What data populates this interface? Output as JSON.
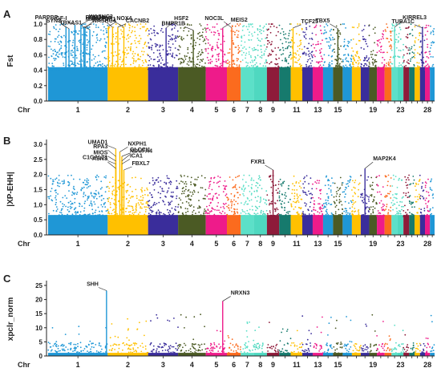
{
  "chart_data": [
    {
      "type": "scatter",
      "panel": "A",
      "ylabel": "Fst",
      "xlabel": "Chr",
      "ylim": [
        0,
        1.0
      ],
      "yticks": [
        "0.0",
        "0.2",
        "0.4",
        "0.6",
        "0.8",
        "1.0"
      ],
      "background_band": [
        0.0,
        0.8
      ],
      "max_gap": 0.03,
      "annotations": [
        {
          "label": "IGF-I",
          "chr": 1,
          "pos": 0.45,
          "value": 0.99
        },
        {
          "label": "WASHC3",
          "chr": 1,
          "pos": 0.55,
          "value": 0.99
        },
        {
          "label": "PARPBP",
          "chr": 1,
          "pos": 0.3,
          "value": 0.96
        },
        {
          "label": "WASHC4",
          "chr": 1,
          "pos": 0.6,
          "value": 0.96
        },
        {
          "label": "SYN3",
          "chr": 1,
          "pos": 0.35,
          "value": 0.94
        },
        {
          "label": "NUP37",
          "chr": 1,
          "pos": 0.62,
          "value": 0.95
        },
        {
          "label": "TBXAS1",
          "chr": 1,
          "pos": 0.7,
          "value": 0.93
        },
        {
          "label": "NOX4",
          "chr": 2,
          "pos": 0.02,
          "value": 0.97
        },
        {
          "label": "RBM33",
          "chr": 2,
          "pos": 0.12,
          "value": 0.96
        },
        {
          "label": "CACNB2",
          "chr": 2,
          "pos": 0.25,
          "value": 0.96
        },
        {
          "label": "MARCHF11",
          "chr": 2,
          "pos": 0.4,
          "value": 0.96
        },
        {
          "label": "HSF2",
          "chr": 3,
          "pos": 0.6,
          "value": 0.95
        },
        {
          "label": "BMPR1B",
          "chr": 4,
          "pos": 0.55,
          "value": 0.92
        },
        {
          "label": "MEIS2",
          "chr": 5,
          "pos": 0.8,
          "value": 0.95
        },
        {
          "label": "NOC3L",
          "chr": 6,
          "pos": 0.35,
          "value": 0.95
        },
        {
          "label": "TCF25",
          "chr": 11,
          "pos": 0.2,
          "value": 0.95
        },
        {
          "label": "TBX5",
          "chr": 15,
          "pos": 0.5,
          "value": 0.94
        },
        {
          "label": "KIRREL3",
          "chr": 22,
          "pos": 0.5,
          "value": 0.96
        },
        {
          "label": "TUBA1C",
          "chr": 27,
          "pos": 0.5,
          "value": 0.95
        }
      ]
    },
    {
      "type": "scatter",
      "panel": "B",
      "ylabel": "|XP-EHH|",
      "xlabel": "Chr",
      "ylim": [
        0,
        3.0
      ],
      "yticks": [
        "0.0",
        "0.5",
        "1.0",
        "1.5",
        "2.0",
        "2.5",
        "3.0"
      ],
      "background_band": [
        0.0,
        1.2
      ],
      "max_gap": 0.12,
      "annotations": [
        {
          "label": "UMAD1",
          "chr": 2,
          "pos": 0.2,
          "value": 2.85
        },
        {
          "label": "NXPH1",
          "chr": 2,
          "pos": 0.3,
          "value": 2.75
        },
        {
          "label": "RPA3",
          "chr": 2,
          "pos": 0.2,
          "value": 2.6
        },
        {
          "label": "GLCCI1",
          "chr": 2,
          "pos": 0.35,
          "value": 2.6
        },
        {
          "label": "MIOS",
          "chr": 2,
          "pos": 0.2,
          "value": 2.45
        },
        {
          "label": "NDUFA4",
          "chr": 2,
          "pos": 0.35,
          "value": 2.45
        },
        {
          "label": "C1GALT1",
          "chr": 2,
          "pos": 0.2,
          "value": 2.35
        },
        {
          "label": "ICA1",
          "chr": 2,
          "pos": 0.35,
          "value": 2.35
        },
        {
          "label": "ASNS",
          "chr": 2,
          "pos": 0.2,
          "value": 2.2
        },
        {
          "label": "FBXL7",
          "chr": 2,
          "pos": 0.4,
          "value": 2.15
        },
        {
          "label": "FXR1",
          "chr": 9,
          "pos": 0.5,
          "value": 2.15
        },
        {
          "label": "MAP2K4",
          "chr": 18,
          "pos": 0.5,
          "value": 2.2
        }
      ]
    },
    {
      "type": "scatter",
      "panel": "C",
      "ylabel": "xpclr_norm",
      "xlabel": "Chr",
      "ylim": [
        0,
        27
      ],
      "yticks": [
        "0",
        "5",
        "10",
        "15",
        "20",
        "25"
      ],
      "background_band": [
        0,
        2
      ],
      "max_gap": 8,
      "annotations": [
        {
          "label": "SHH",
          "chr": 1,
          "pos": 0.98,
          "value": 25
        },
        {
          "label": "NRXN3",
          "chr": 5,
          "pos": 0.8,
          "value": 21
        }
      ]
    }
  ],
  "chromosomes": {
    "labels_shown": [
      "1",
      "2",
      "3",
      "4",
      "5",
      "6",
      "7",
      "8",
      "9",
      "11",
      "13",
      "15",
      "19",
      "23",
      "28"
    ],
    "colors": [
      "#1f97d6",
      "#ffc000",
      "#3a2d9b",
      "#4b5a24",
      "#ee1b8a",
      "#fb6b1e",
      "#f4f4f4",
      "#4fd8c0",
      "#8e1b3a",
      "#167a6d",
      "#ffc000",
      "#3a2d9b",
      "#ee1b8a",
      "#1f97d6",
      "#4b5a24"
    ]
  },
  "panel_letters": [
    "A",
    "B",
    "C"
  ]
}
